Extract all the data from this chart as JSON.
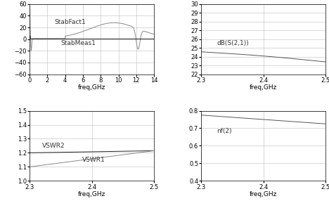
{
  "top_left": {
    "xlabel": "freq,GHz",
    "xlim": [
      0,
      14
    ],
    "ylim": [
      -60,
      60
    ],
    "yticks": [
      -60,
      -40,
      -20,
      0,
      20,
      40,
      60
    ],
    "xticks": [
      0,
      2,
      4,
      6,
      8,
      10,
      12,
      14
    ],
    "label1": "StabFact1",
    "label2": "StabMeas1",
    "color1": "#888888",
    "color2": "#222222"
  },
  "top_right": {
    "xlabel": "freq,GHz",
    "xlim": [
      2.3,
      2.5
    ],
    "ylim": [
      22,
      30
    ],
    "yticks": [
      22,
      23,
      24,
      25,
      26,
      27,
      28,
      29,
      30
    ],
    "xticks": [
      2.3,
      2.4,
      2.5
    ],
    "label1": "dB(S(2,1))",
    "color1": "#555555"
  },
  "bot_left": {
    "xlabel": "freq,GHz",
    "xlim": [
      2.3,
      2.5
    ],
    "ylim": [
      1.0,
      1.5
    ],
    "yticks": [
      1.0,
      1.1,
      1.2,
      1.3,
      1.4,
      1.5
    ],
    "xticks": [
      2.3,
      2.4,
      2.5
    ],
    "label1": "VSWR2",
    "label2": "VSWR1",
    "color1": "#222222",
    "color2": "#888888"
  },
  "bot_right": {
    "xlabel": "freq,GHz",
    "xlim": [
      2.3,
      2.5
    ],
    "ylim": [
      0.4,
      0.8
    ],
    "yticks": [
      0.4,
      0.5,
      0.6,
      0.7,
      0.8
    ],
    "xticks": [
      2.3,
      2.4,
      2.5
    ],
    "label1": "nf(2)",
    "color1": "#555555"
  },
  "bg_color": "#ffffff",
  "grid_color": "#bbbbbb",
  "font_size": 6.5
}
